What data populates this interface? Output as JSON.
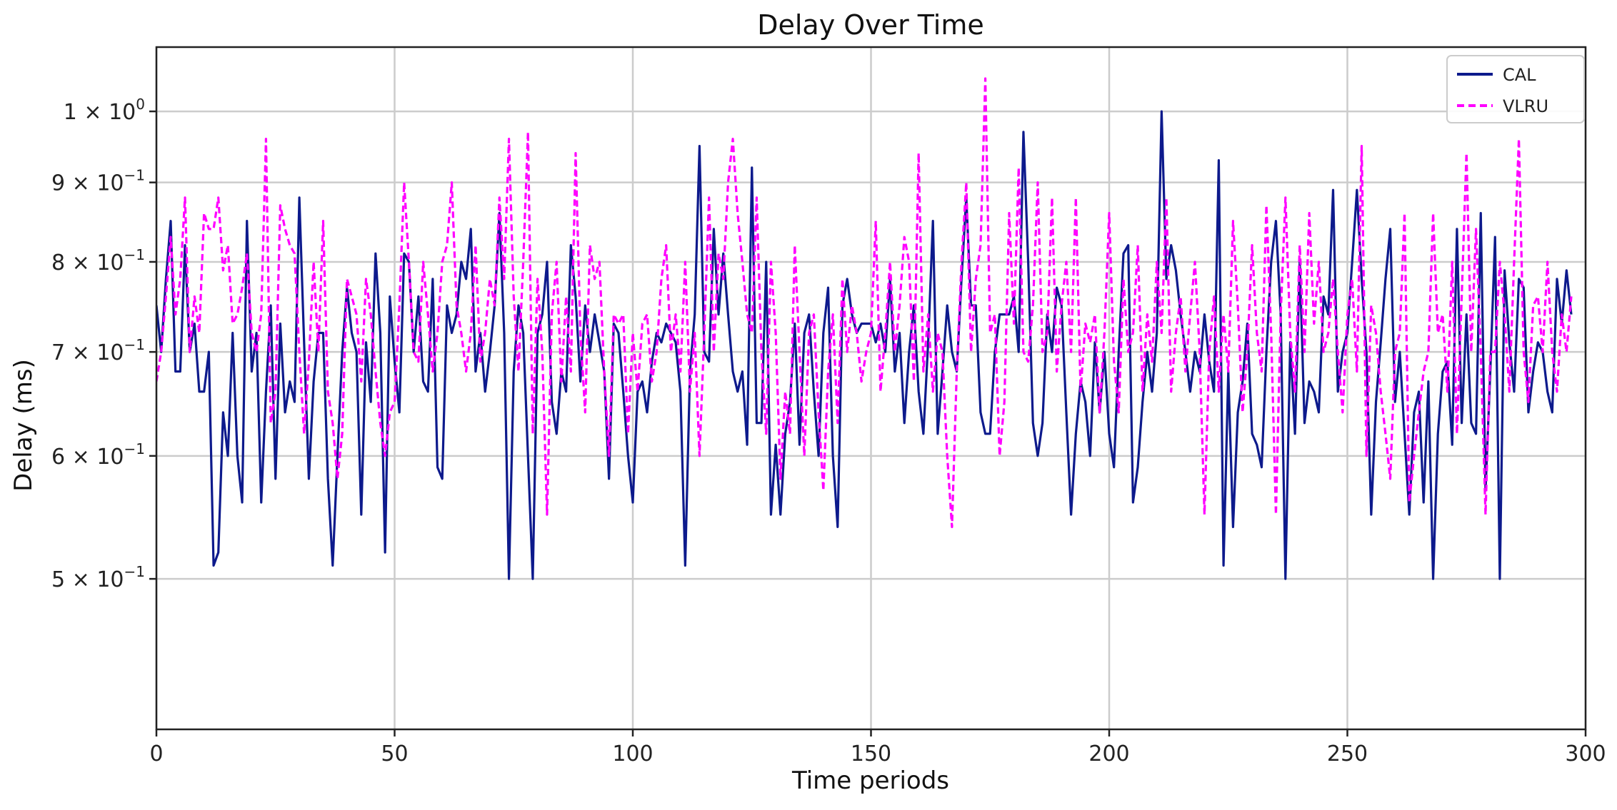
{
  "chart_data": {
    "type": "line",
    "title": "Delay Over Time",
    "xlabel": "Time periods",
    "ylabel": "Delay (ms)",
    "xlim": [
      0,
      300
    ],
    "ylim": [
      0.4,
      1.1
    ],
    "x_ticks": [
      0,
      50,
      100,
      150,
      200,
      250,
      300
    ],
    "y_ticks": [
      {
        "value": 0.5,
        "mantissa": "5",
        "exponent": "−1"
      },
      {
        "value": 0.6,
        "mantissa": "6",
        "exponent": "−1"
      },
      {
        "value": 0.7,
        "mantissa": "7",
        "exponent": "−1"
      },
      {
        "value": 0.8,
        "mantissa": "8",
        "exponent": "−1"
      },
      {
        "value": 0.9,
        "mantissa": "9",
        "exponent": "−1"
      },
      {
        "value": 1.0,
        "mantissa": "1",
        "exponent": "0"
      }
    ],
    "y_tick_multiplier": "× 10",
    "grid": true,
    "legend_position": "top-right",
    "series": [
      {
        "name": "CAL",
        "color": "#0d1a8c",
        "style": "solid",
        "values": [
          0.75,
          0.7,
          0.78,
          0.85,
          0.68,
          0.68,
          0.82,
          0.7,
          0.73,
          0.66,
          0.66,
          0.7,
          0.51,
          0.52,
          0.64,
          0.6,
          0.72,
          0.6,
          0.56,
          0.85,
          0.68,
          0.72,
          0.56,
          0.66,
          0.75,
          0.58,
          0.73,
          0.64,
          0.67,
          0.65,
          0.88,
          0.71,
          0.58,
          0.67,
          0.72,
          0.72,
          0.58,
          0.51,
          0.6,
          0.7,
          0.77,
          0.72,
          0.7,
          0.55,
          0.71,
          0.65,
          0.81,
          0.72,
          0.52,
          0.76,
          0.69,
          0.64,
          0.81,
          0.8,
          0.7,
          0.76,
          0.67,
          0.66,
          0.78,
          0.59,
          0.58,
          0.75,
          0.72,
          0.74,
          0.8,
          0.78,
          0.84,
          0.68,
          0.72,
          0.66,
          0.7,
          0.75,
          0.86,
          0.72,
          0.5,
          0.68,
          0.75,
          0.72,
          0.6,
          0.5,
          0.72,
          0.74,
          0.8,
          0.65,
          0.62,
          0.68,
          0.66,
          0.82,
          0.76,
          0.67,
          0.75,
          0.7,
          0.74,
          0.71,
          0.68,
          0.58,
          0.73,
          0.72,
          0.66,
          0.6,
          0.56,
          0.66,
          0.67,
          0.64,
          0.69,
          0.72,
          0.71,
          0.73,
          0.72,
          0.71,
          0.66,
          0.51,
          0.68,
          0.74,
          0.95,
          0.7,
          0.69,
          0.84,
          0.74,
          0.81,
          0.74,
          0.68,
          0.66,
          0.68,
          0.61,
          0.92,
          0.63,
          0.63,
          0.8,
          0.55,
          0.61,
          0.55,
          0.62,
          0.65,
          0.73,
          0.61,
          0.72,
          0.74,
          0.66,
          0.6,
          0.72,
          0.77,
          0.6,
          0.54,
          0.75,
          0.78,
          0.74,
          0.72,
          0.73,
          0.73,
          0.73,
          0.71,
          0.73,
          0.7,
          0.78,
          0.68,
          0.72,
          0.63,
          0.7,
          0.75,
          0.66,
          0.62,
          0.71,
          0.85,
          0.62,
          0.68,
          0.75,
          0.7,
          0.68,
          0.78,
          0.88,
          0.75,
          0.75,
          0.64,
          0.62,
          0.62,
          0.7,
          0.74,
          0.74,
          0.74,
          0.76,
          0.7,
          0.97,
          0.8,
          0.63,
          0.6,
          0.63,
          0.74,
          0.7,
          0.77,
          0.75,
          0.64,
          0.55,
          0.62,
          0.67,
          0.65,
          0.6,
          0.71,
          0.64,
          0.7,
          0.62,
          0.59,
          0.7,
          0.81,
          0.82,
          0.56,
          0.59,
          0.65,
          0.7,
          0.66,
          0.72,
          1.0,
          0.78,
          0.82,
          0.79,
          0.74,
          0.7,
          0.66,
          0.7,
          0.68,
          0.74,
          0.69,
          0.66,
          0.93,
          0.51,
          0.68,
          0.54,
          0.64,
          0.67,
          0.73,
          0.62,
          0.61,
          0.59,
          0.7,
          0.8,
          0.85,
          0.74,
          0.5,
          0.71,
          0.62,
          0.8,
          0.63,
          0.67,
          0.66,
          0.64,
          0.76,
          0.74,
          0.89,
          0.66,
          0.7,
          0.72,
          0.8,
          0.89,
          0.78,
          0.7,
          0.55,
          0.65,
          0.71,
          0.78,
          0.84,
          0.65,
          0.7,
          0.62,
          0.55,
          0.64,
          0.66,
          0.56,
          0.67,
          0.5,
          0.62,
          0.68,
          0.69,
          0.61,
          0.84,
          0.63,
          0.74,
          0.63,
          0.62,
          0.86,
          0.57,
          0.68,
          0.83,
          0.5,
          0.79,
          0.71,
          0.66,
          0.78,
          0.77,
          0.64,
          0.68,
          0.71,
          0.7,
          0.66,
          0.64,
          0.78,
          0.73,
          0.79,
          0.74
        ]
      },
      {
        "name": "VLRU",
        "color": "#ff00ff",
        "style": "dashed",
        "values": [
          0.67,
          0.7,
          0.76,
          0.83,
          0.74,
          0.78,
          0.88,
          0.7,
          0.76,
          0.72,
          0.86,
          0.84,
          0.84,
          0.88,
          0.79,
          0.82,
          0.73,
          0.74,
          0.77,
          0.81,
          0.72,
          0.7,
          0.74,
          0.96,
          0.63,
          0.66,
          0.87,
          0.84,
          0.82,
          0.81,
          0.7,
          0.62,
          0.69,
          0.8,
          0.7,
          0.85,
          0.66,
          0.63,
          0.58,
          0.62,
          0.78,
          0.76,
          0.74,
          0.67,
          0.78,
          0.74,
          0.68,
          0.63,
          0.6,
          0.64,
          0.65,
          0.75,
          0.9,
          0.8,
          0.7,
          0.69,
          0.8,
          0.74,
          0.68,
          0.72,
          0.8,
          0.82,
          0.9,
          0.75,
          0.72,
          0.68,
          0.72,
          0.82,
          0.69,
          0.72,
          0.78,
          0.75,
          0.88,
          0.78,
          0.96,
          0.76,
          0.68,
          0.8,
          0.97,
          0.62,
          0.78,
          0.7,
          0.55,
          0.74,
          0.8,
          0.67,
          0.76,
          0.68,
          0.94,
          0.72,
          0.64,
          0.82,
          0.78,
          0.8,
          0.68,
          0.6,
          0.74,
          0.73,
          0.74,
          0.62,
          0.72,
          0.66,
          0.73,
          0.74,
          0.67,
          0.7,
          0.78,
          0.82,
          0.7,
          0.74,
          0.68,
          0.8,
          0.66,
          0.72,
          0.6,
          0.72,
          0.88,
          0.7,
          0.81,
          0.78,
          0.9,
          0.96,
          0.86,
          0.8,
          0.74,
          0.72,
          0.88,
          0.7,
          0.62,
          0.8,
          0.72,
          0.58,
          0.66,
          0.62,
          0.82,
          0.7,
          0.6,
          0.72,
          0.74,
          0.64,
          0.57,
          0.68,
          0.74,
          0.63,
          0.78,
          0.7,
          0.75,
          0.72,
          0.67,
          0.7,
          0.72,
          0.85,
          0.66,
          0.72,
          0.8,
          0.7,
          0.75,
          0.83,
          0.8,
          0.67,
          0.94,
          0.68,
          0.74,
          0.66,
          0.72,
          0.7,
          0.6,
          0.54,
          0.68,
          0.8,
          0.9,
          0.7,
          0.78,
          0.82,
          1.05,
          0.72,
          0.74,
          0.6,
          0.65,
          0.86,
          0.73,
          0.92,
          0.7,
          0.69,
          0.75,
          0.9,
          0.7,
          0.72,
          0.88,
          0.68,
          0.75,
          0.8,
          0.7,
          0.88,
          0.66,
          0.73,
          0.71,
          0.74,
          0.64,
          0.72,
          0.86,
          0.69,
          0.64,
          0.78,
          0.7,
          0.72,
          0.82,
          0.66,
          0.74,
          0.69,
          0.8,
          0.72,
          0.88,
          0.66,
          0.72,
          0.76,
          0.68,
          0.74,
          0.8,
          0.7,
          0.55,
          0.7,
          0.76,
          0.66,
          0.74,
          0.68,
          0.85,
          0.75,
          0.64,
          0.7,
          0.82,
          0.72,
          0.68,
          0.87,
          0.72,
          0.55,
          0.74,
          0.88,
          0.72,
          0.66,
          0.82,
          0.7,
          0.86,
          0.73,
          0.8,
          0.7,
          0.72,
          0.78,
          0.7,
          0.64,
          0.74,
          0.78,
          0.68,
          0.95,
          0.6,
          0.75,
          0.72,
          0.66,
          0.62,
          0.58,
          0.7,
          0.72,
          0.86,
          0.56,
          0.6,
          0.64,
          0.68,
          0.7,
          0.86,
          0.72,
          0.74,
          0.66,
          0.8,
          0.62,
          0.76,
          0.94,
          0.7,
          0.84,
          0.7,
          0.55,
          0.7,
          0.7,
          0.8,
          0.74,
          0.66,
          0.8,
          0.96,
          0.7,
          0.65,
          0.75,
          0.76,
          0.7,
          0.8,
          0.7,
          0.66,
          0.74,
          0.7,
          0.76
        ]
      }
    ]
  }
}
